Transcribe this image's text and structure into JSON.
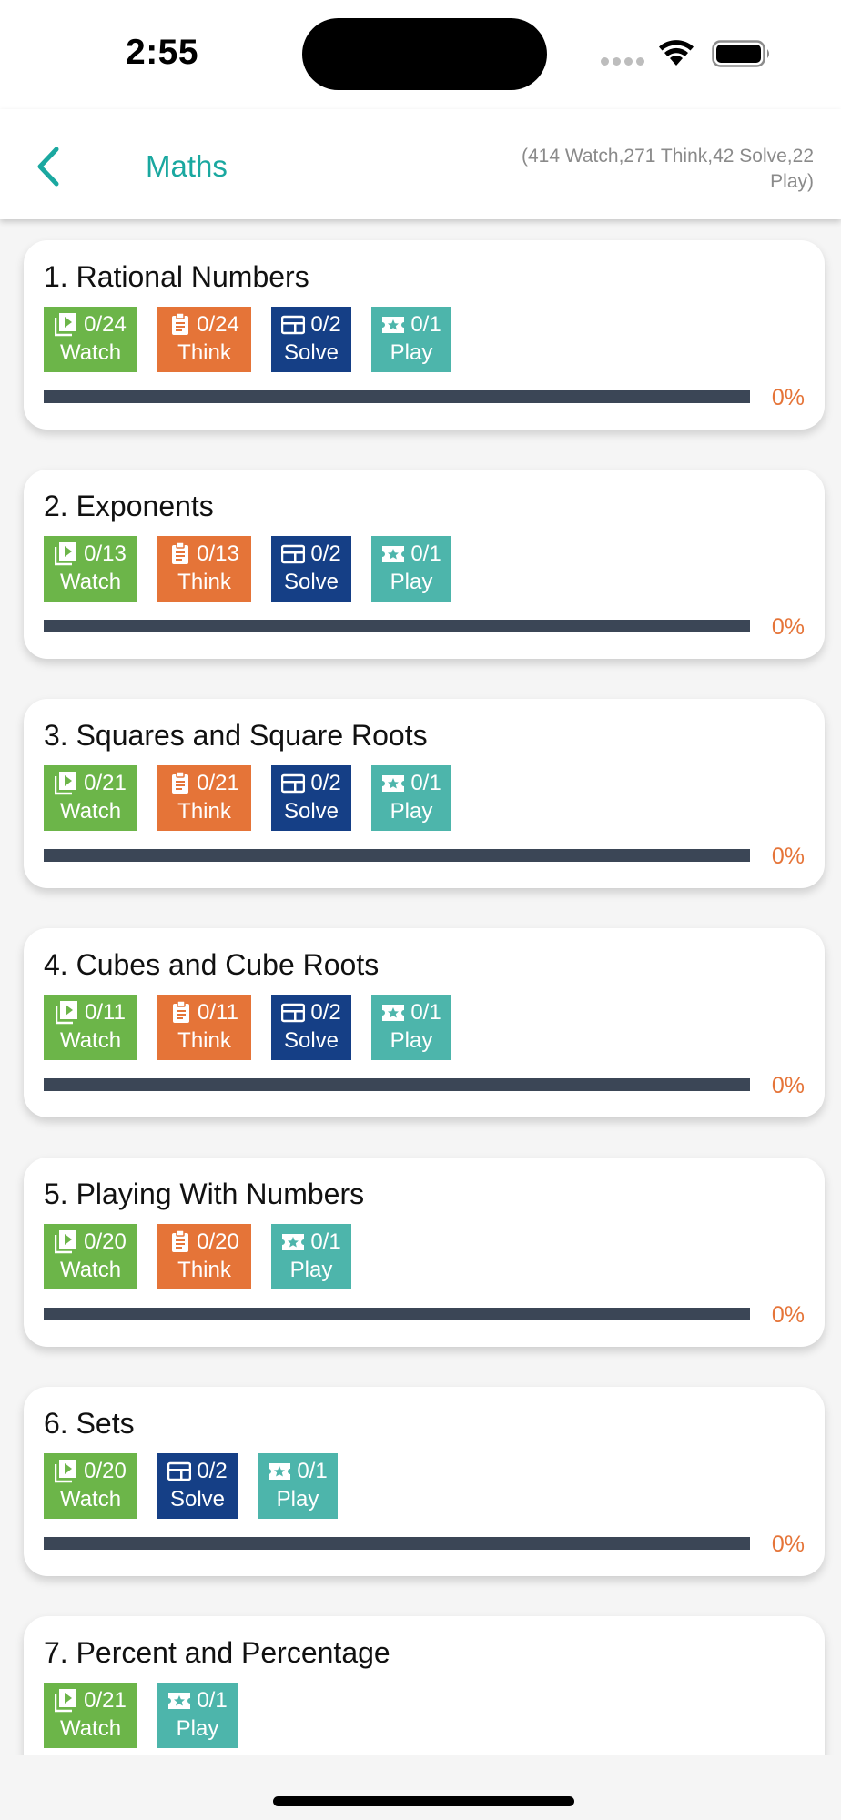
{
  "status": {
    "time": "2:55"
  },
  "nav": {
    "title": "Maths",
    "summary": "(414 Watch,271 Think,42 Solve,22 Play)"
  },
  "colors": {
    "accent": "#1aa8a0",
    "watch": "#6cb549",
    "think": "#e57438",
    "solve": "#153f86",
    "play": "#4db5ab",
    "progress_track": "#3b4656"
  },
  "labels": {
    "watch": "Watch",
    "think": "Think",
    "solve": "Solve",
    "play": "Play"
  },
  "chapters": [
    {
      "title": "1. Rational Numbers",
      "watch": "0/24",
      "think": "0/24",
      "solve": "0/2",
      "play": "0/1",
      "progress": "0%"
    },
    {
      "title": "2. Exponents",
      "watch": "0/13",
      "think": "0/13",
      "solve": "0/2",
      "play": "0/1",
      "progress": "0%"
    },
    {
      "title": "3. Squares and Square Roots",
      "watch": "0/21",
      "think": "0/21",
      "solve": "0/2",
      "play": "0/1",
      "progress": "0%"
    },
    {
      "title": "4. Cubes and Cube Roots",
      "watch": "0/11",
      "think": "0/11",
      "solve": "0/2",
      "play": "0/1",
      "progress": "0%"
    },
    {
      "title": "5. Playing With Numbers",
      "watch": "0/20",
      "think": "0/20",
      "play": "0/1",
      "progress": "0%"
    },
    {
      "title": "6. Sets",
      "watch": "0/20",
      "solve": "0/2",
      "play": "0/1",
      "progress": "0%"
    },
    {
      "title": "7. Percent and Percentage",
      "watch": "0/21",
      "play": "0/1"
    }
  ]
}
